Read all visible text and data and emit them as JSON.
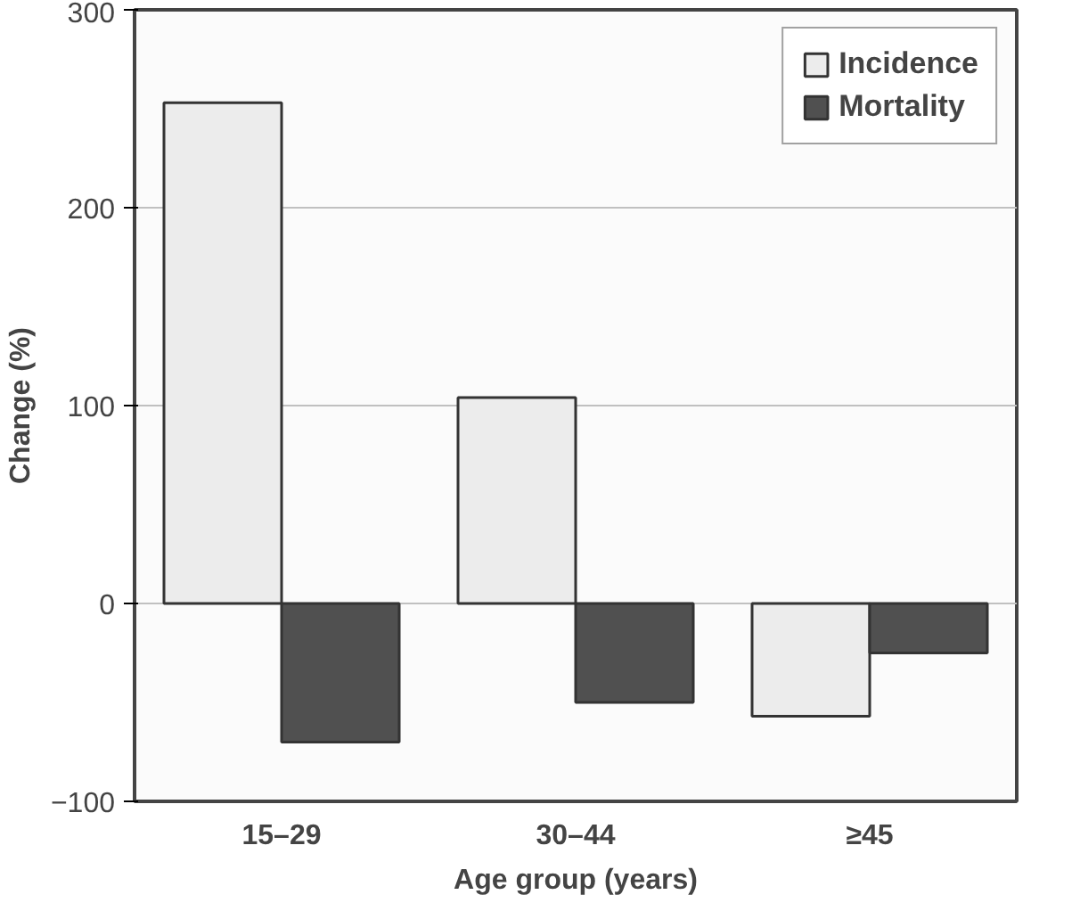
{
  "chart_data": {
    "type": "bar",
    "xlabel": "Age group (years)",
    "ylabel": "Change (%)",
    "categories": [
      "15–29",
      "30–44",
      "≥45"
    ],
    "series": [
      {
        "name": "Incidence",
        "color": "#ececec",
        "values": [
          253,
          104,
          -57
        ]
      },
      {
        "name": "Mortality",
        "color": "#505050",
        "values": [
          -70,
          -50,
          -25
        ]
      }
    ],
    "ylim": [
      -100,
      300
    ],
    "yticks": [
      -100,
      0,
      100,
      200,
      300
    ],
    "grid": "y",
    "legend": "top right"
  }
}
